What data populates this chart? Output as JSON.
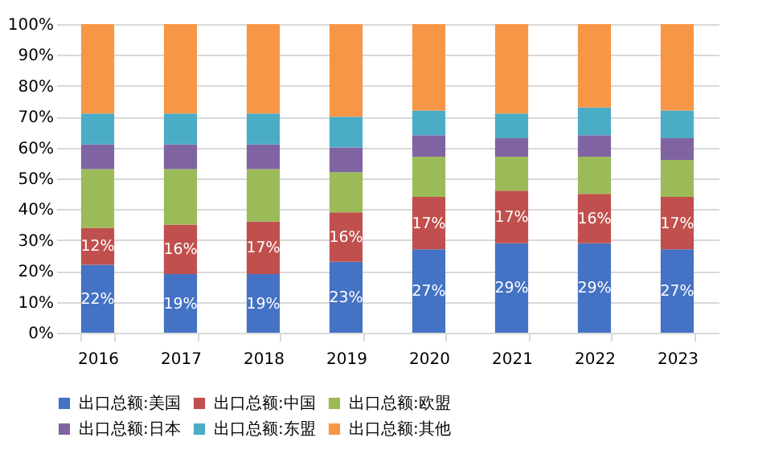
{
  "chart_data": {
    "type": "bar",
    "stacked": true,
    "categories": [
      "2016",
      "2017",
      "2018",
      "2019",
      "2020",
      "2021",
      "2022",
      "2023"
    ],
    "series": [
      {
        "name": "出口总额:美国",
        "color": "#4472c4",
        "values": [
          22,
          19,
          19,
          23,
          27,
          29,
          29,
          27
        ],
        "value_labels": [
          "22%",
          "19%",
          "19%",
          "23%",
          "27%",
          "29%",
          "29%",
          "27%"
        ]
      },
      {
        "name": "出口总额:中国",
        "color": "#c0504d",
        "values": [
          12,
          16,
          17,
          16,
          17,
          17,
          16,
          17
        ],
        "value_labels": [
          "12%",
          "16%",
          "17%",
          "16%",
          "17%",
          "17%",
          "16%",
          "17%"
        ]
      },
      {
        "name": "出口总额:欧盟",
        "color": "#9bbb59",
        "values": [
          19,
          18,
          17,
          13,
          13,
          11,
          12,
          12
        ]
      },
      {
        "name": "出口总额:日本",
        "color": "#8064a2",
        "values": [
          8,
          8,
          8,
          8,
          7,
          6,
          7,
          7
        ]
      },
      {
        "name": "出口总额:东盟",
        "color": "#4bacc6",
        "values": [
          10,
          10,
          10,
          10,
          8,
          8,
          9,
          9
        ]
      },
      {
        "name": "出口总额:其他",
        "color": "#f79646",
        "values": [
          29,
          29,
          29,
          30,
          28,
          29,
          27,
          28
        ]
      }
    ],
    "ylim": [
      0,
      100
    ],
    "yticks": [
      {
        "value": 0,
        "label": "0%"
      },
      {
        "value": 10,
        "label": "10%"
      },
      {
        "value": 20,
        "label": "20%"
      },
      {
        "value": 30,
        "label": "30%"
      },
      {
        "value": 40,
        "label": "40%"
      },
      {
        "value": 50,
        "label": "50%"
      },
      {
        "value": 60,
        "label": "60%"
      },
      {
        "value": 70,
        "label": "70%"
      },
      {
        "value": 80,
        "label": "80%"
      },
      {
        "value": 90,
        "label": "90%"
      },
      {
        "value": 100,
        "label": "100%"
      }
    ],
    "grid": "y",
    "legend": "bottom"
  }
}
